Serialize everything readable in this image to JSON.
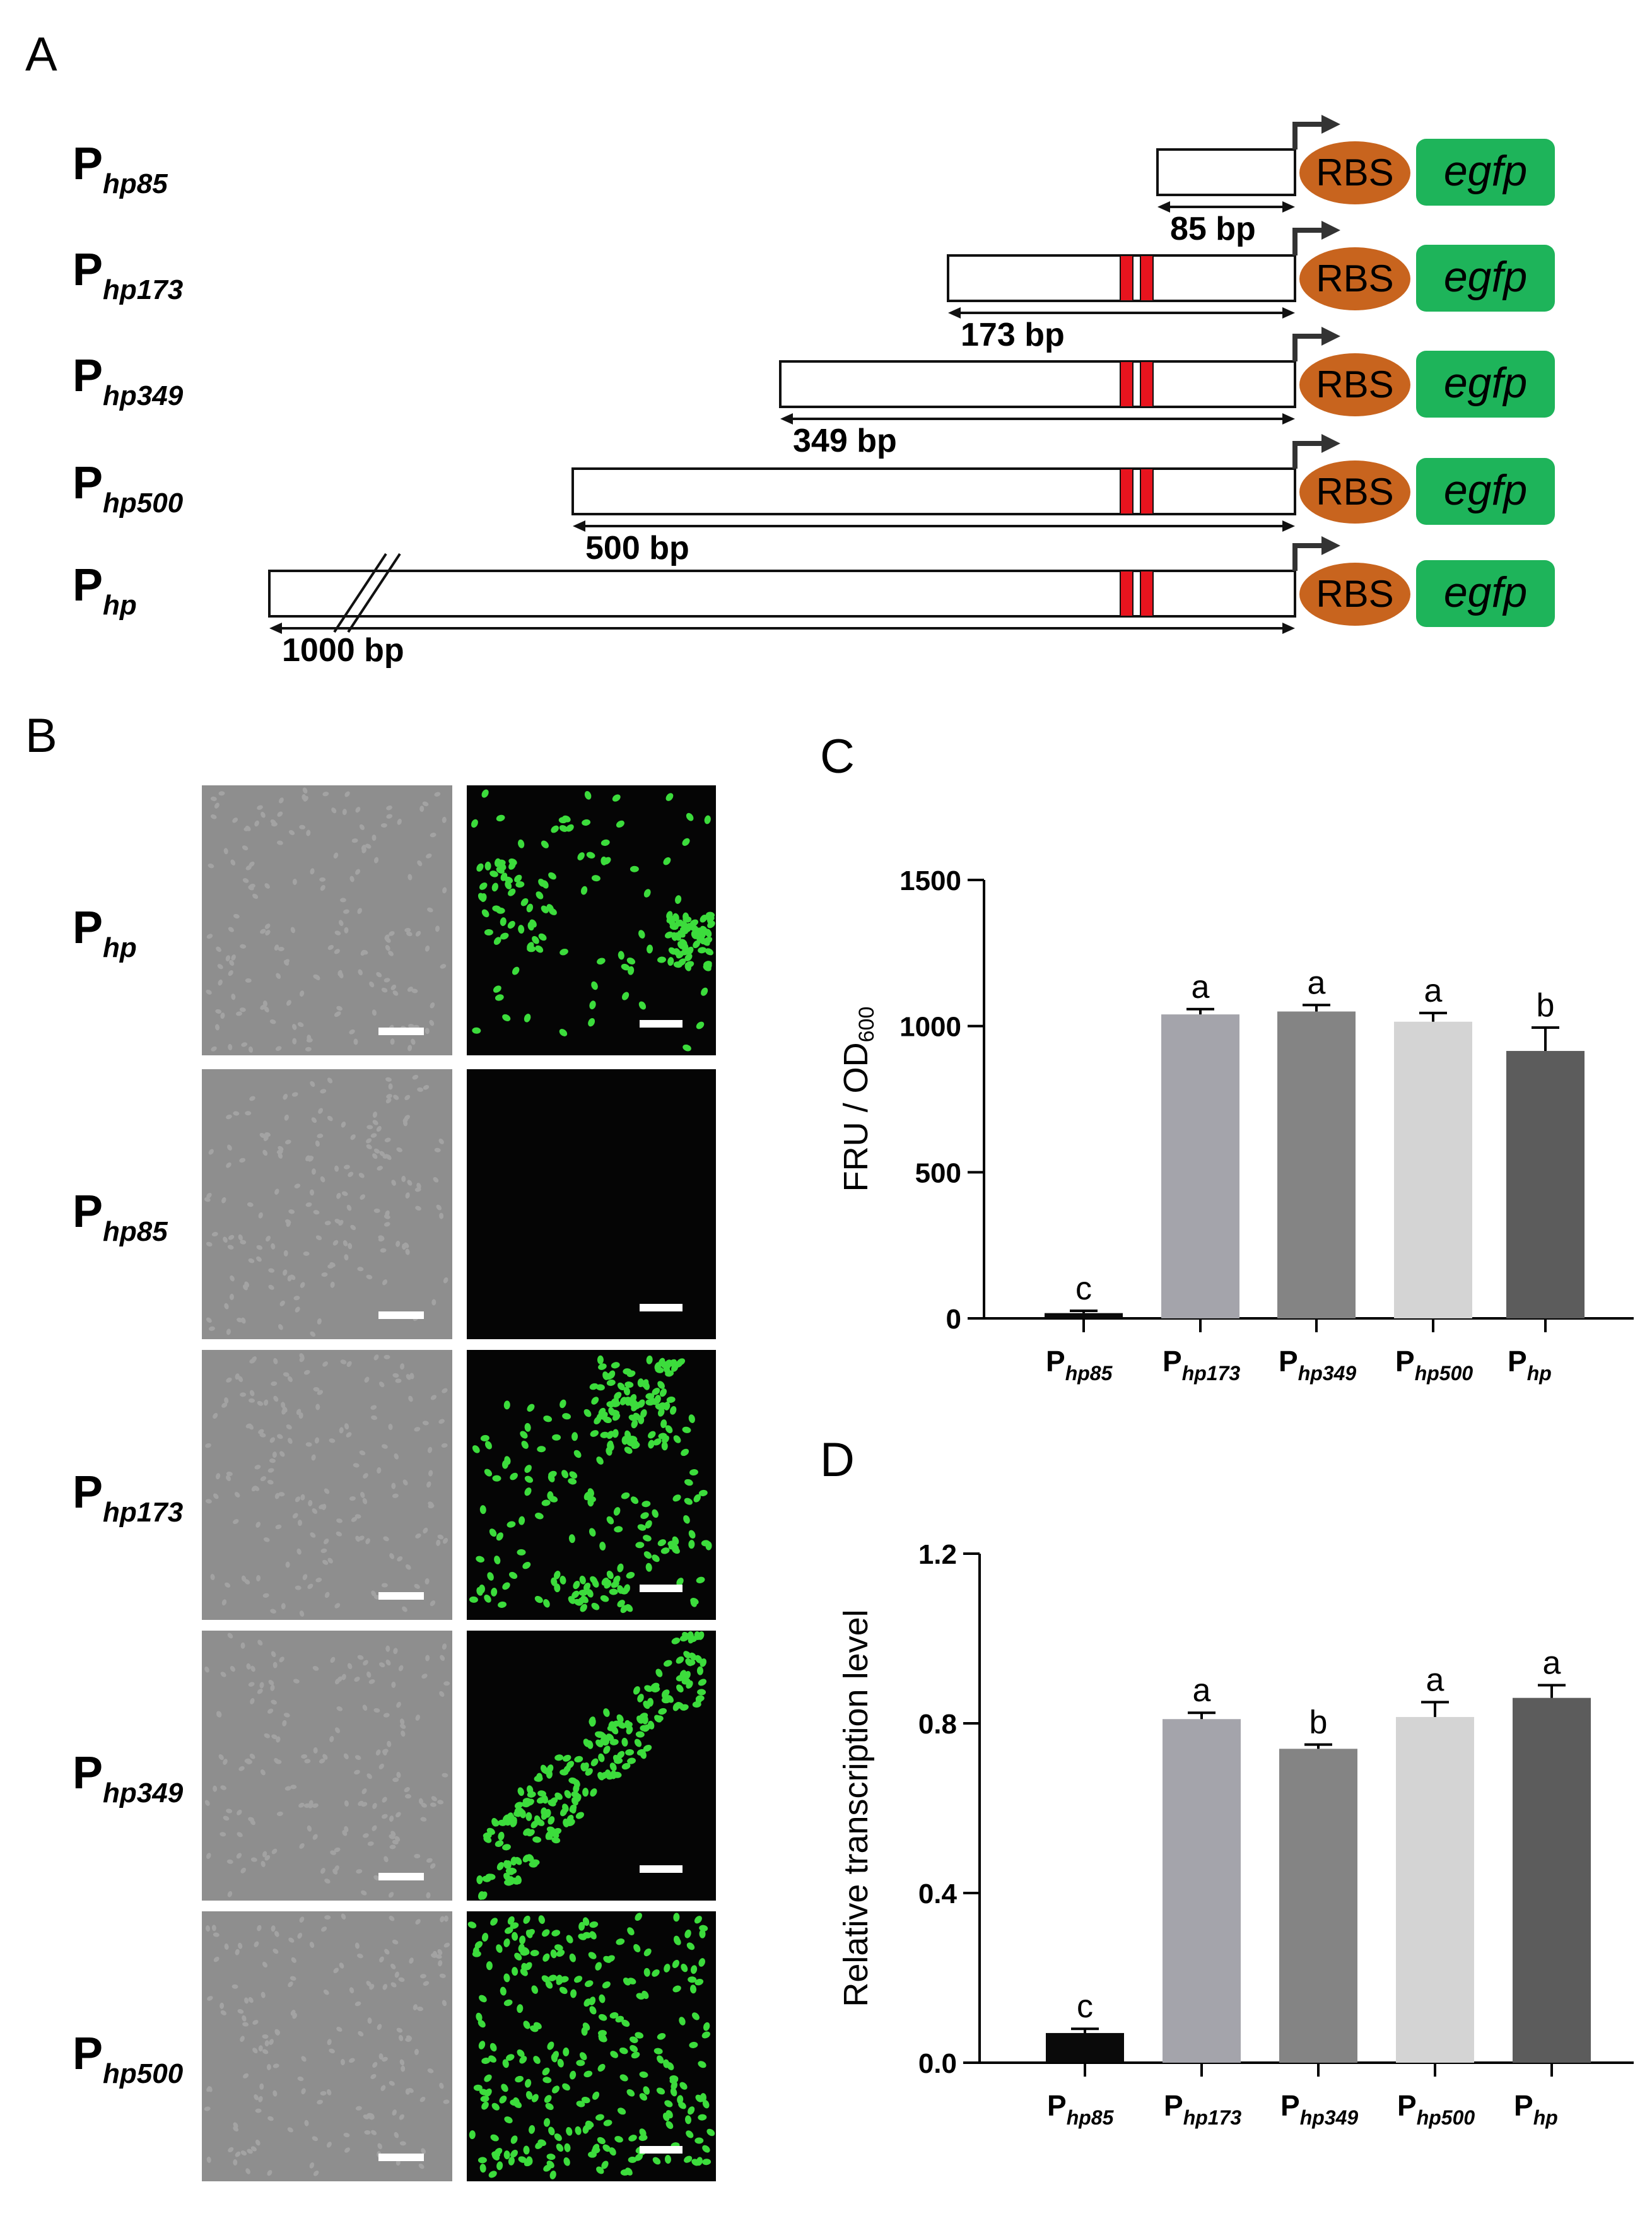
{
  "panelA": {
    "label": "A",
    "bp_unit": " bp",
    "constructs": [
      {
        "p": "P",
        "sub": "hp85",
        "length_bp": "85",
        "sites": false,
        "break": false
      },
      {
        "p": "P",
        "sub": "hp173",
        "length_bp": "173",
        "sites": true,
        "break": false
      },
      {
        "p": "P",
        "sub": "hp349",
        "length_bp": "349",
        "sites": true,
        "break": false
      },
      {
        "p": "P",
        "sub": "hp500",
        "length_bp": "500",
        "sites": true,
        "break": false
      },
      {
        "p": "P",
        "sub": "hp",
        "length_bp": "1000",
        "sites": true,
        "break": true
      }
    ],
    "rbs_label": "RBS",
    "gene_label": "egfp",
    "colors": {
      "rbs": "#c8641e",
      "gene": "#1eb45a",
      "site": "#e8141e",
      "arrow": "#333333"
    }
  },
  "panelB": {
    "label": "B",
    "rows": [
      {
        "p": "P",
        "sub": "hp",
        "fluor": "dense-patches"
      },
      {
        "p": "P",
        "sub": "hp85",
        "fluor": "none"
      },
      {
        "p": "P",
        "sub": "hp173",
        "fluor": "clusters"
      },
      {
        "p": "P",
        "sub": "hp349",
        "fluor": "diagonal-band"
      },
      {
        "p": "P",
        "sub": "hp500",
        "fluor": "uniform"
      }
    ],
    "colors": {
      "brightfield": "#8e8e8e",
      "fluor_bg": "#050505",
      "cell": "#3cdc3c",
      "scale_bar": "#ffffff"
    }
  },
  "chart_data": [
    {
      "panel": "C",
      "type": "bar",
      "categories": [
        "hp85",
        "hp173",
        "hp349",
        "hp500",
        "hp"
      ],
      "category_prefix": "P",
      "values": [
        18,
        1040,
        1050,
        1015,
        915
      ],
      "errors": [
        8,
        18,
        22,
        30,
        80
      ],
      "letters": [
        "c",
        "a",
        "a",
        "a",
        "b"
      ],
      "colors": [
        "#0a0a0a",
        "#a4a4ab",
        "#848484",
        "#d4d4d4",
        "#5c5c5c"
      ],
      "ylabel_main": "FRU / OD",
      "ylabel_sub": "600",
      "ylim": [
        0,
        1500
      ],
      "yticks": [
        0,
        500,
        1000,
        1500
      ],
      "ytick_labels": [
        "0",
        "500",
        "1000",
        "1500"
      ]
    },
    {
      "panel": "D",
      "type": "bar",
      "categories": [
        "hp85",
        "hp173",
        "hp349",
        "hp500",
        "hp"
      ],
      "category_prefix": "P",
      "values": [
        0.07,
        0.81,
        0.74,
        0.815,
        0.86
      ],
      "errors": [
        0.01,
        0.015,
        0.01,
        0.035,
        0.03
      ],
      "letters": [
        "c",
        "a",
        "b",
        "a",
        "a"
      ],
      "colors": [
        "#0a0a0a",
        "#a4a4ab",
        "#848484",
        "#d4d4d4",
        "#5c5c5c"
      ],
      "ylabel_main": "Relative transcription level",
      "ylabel_sub": "",
      "ylim": [
        0,
        1.2
      ],
      "yticks": [
        0,
        0.4,
        0.8,
        1.2
      ],
      "ytick_labels": [
        "0.0",
        "0.4",
        "0.8",
        "1.2"
      ]
    }
  ]
}
